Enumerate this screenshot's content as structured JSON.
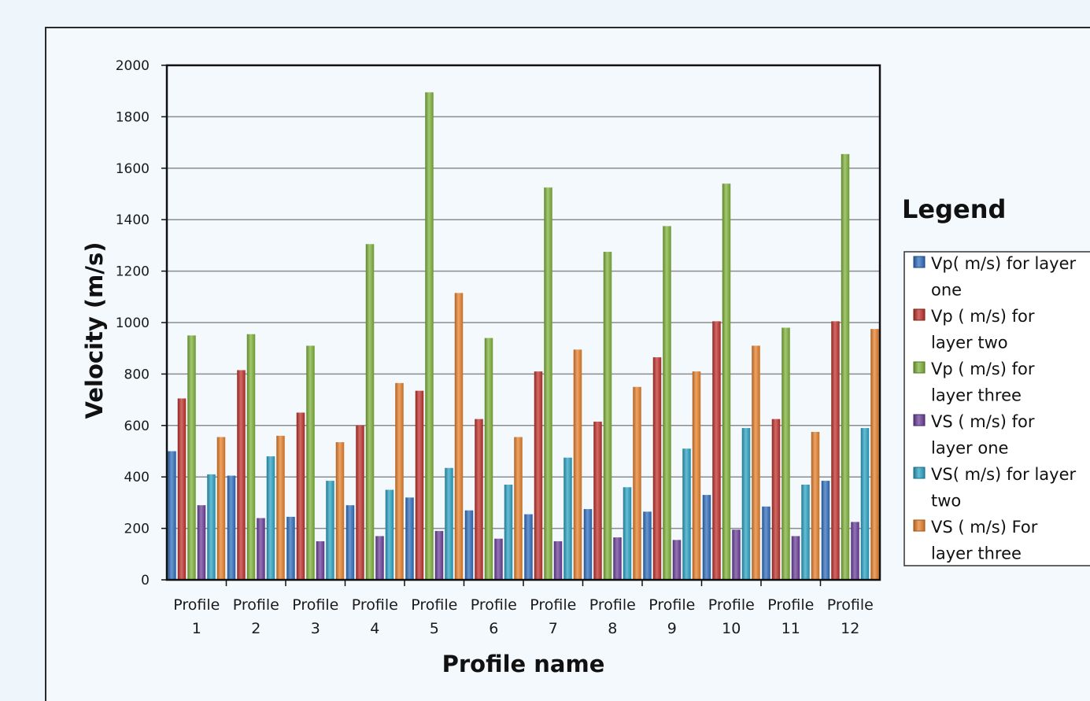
{
  "chart_data": {
    "type": "bar",
    "xlabel": "Profile name",
    "ylabel": "Velocity (m/s)",
    "ylim": [
      0,
      2000
    ],
    "yticks": [
      0,
      200,
      400,
      600,
      800,
      1000,
      1200,
      1400,
      1600,
      1800,
      2000
    ],
    "grid": true,
    "legend_title": "Legend",
    "legend_position": "right",
    "categories": [
      [
        "Profile",
        "1"
      ],
      [
        "Profile",
        "2"
      ],
      [
        "Profile",
        "3"
      ],
      [
        "Profile",
        "4"
      ],
      [
        "Profile",
        "5"
      ],
      [
        "Profile",
        "6"
      ],
      [
        "Profile",
        "7"
      ],
      [
        "Profile",
        "8"
      ],
      [
        "Profile",
        "9"
      ],
      [
        "Profile",
        "10"
      ],
      [
        "Profile",
        "11"
      ],
      [
        "Profile",
        "12"
      ]
    ],
    "series": [
      {
        "name": "Vp( m/s) for layer one",
        "legend_lines": [
          "Vp( m/s) for layer",
          "one"
        ],
        "color": "#2f6fbf",
        "values": [
          500,
          405,
          245,
          290,
          320,
          270,
          255,
          275,
          265,
          330,
          285,
          385
        ]
      },
      {
        "name": "Vp ( m/s) for layer two",
        "legend_lines": [
          "Vp ( m/s) for",
          "layer two"
        ],
        "color": "#c0302b",
        "values": [
          705,
          815,
          650,
          600,
          735,
          625,
          810,
          615,
          865,
          1005,
          625,
          1005
        ]
      },
      {
        "name": "Vp ( m/s) for layer three",
        "legend_lines": [
          "Vp ( m/s) for",
          "layer three"
        ],
        "color": "#7fb23a",
        "values": [
          950,
          955,
          910,
          1305,
          1895,
          940,
          1525,
          1275,
          1375,
          1540,
          980,
          1655
        ]
      },
      {
        "name": "VS ( m/s) for layer one",
        "legend_lines": [
          "VS ( m/s) for",
          "layer one"
        ],
        "color": "#6a3e9a",
        "values": [
          290,
          240,
          150,
          170,
          190,
          160,
          150,
          165,
          155,
          195,
          170,
          225
        ]
      },
      {
        "name": "VS( m/s) for layer two",
        "legend_lines": [
          "VS( m/s) for layer",
          "two"
        ],
        "color": "#2ba3c4",
        "values": [
          410,
          480,
          385,
          350,
          435,
          370,
          475,
          360,
          510,
          590,
          370,
          590
        ]
      },
      {
        "name": "VS ( m/s) For layer three",
        "legend_lines": [
          "VS ( m/s) For",
          "layer three"
        ],
        "color": "#e8802a",
        "values": [
          555,
          560,
          535,
          765,
          1115,
          555,
          895,
          750,
          810,
          910,
          575,
          975
        ]
      }
    ]
  }
}
